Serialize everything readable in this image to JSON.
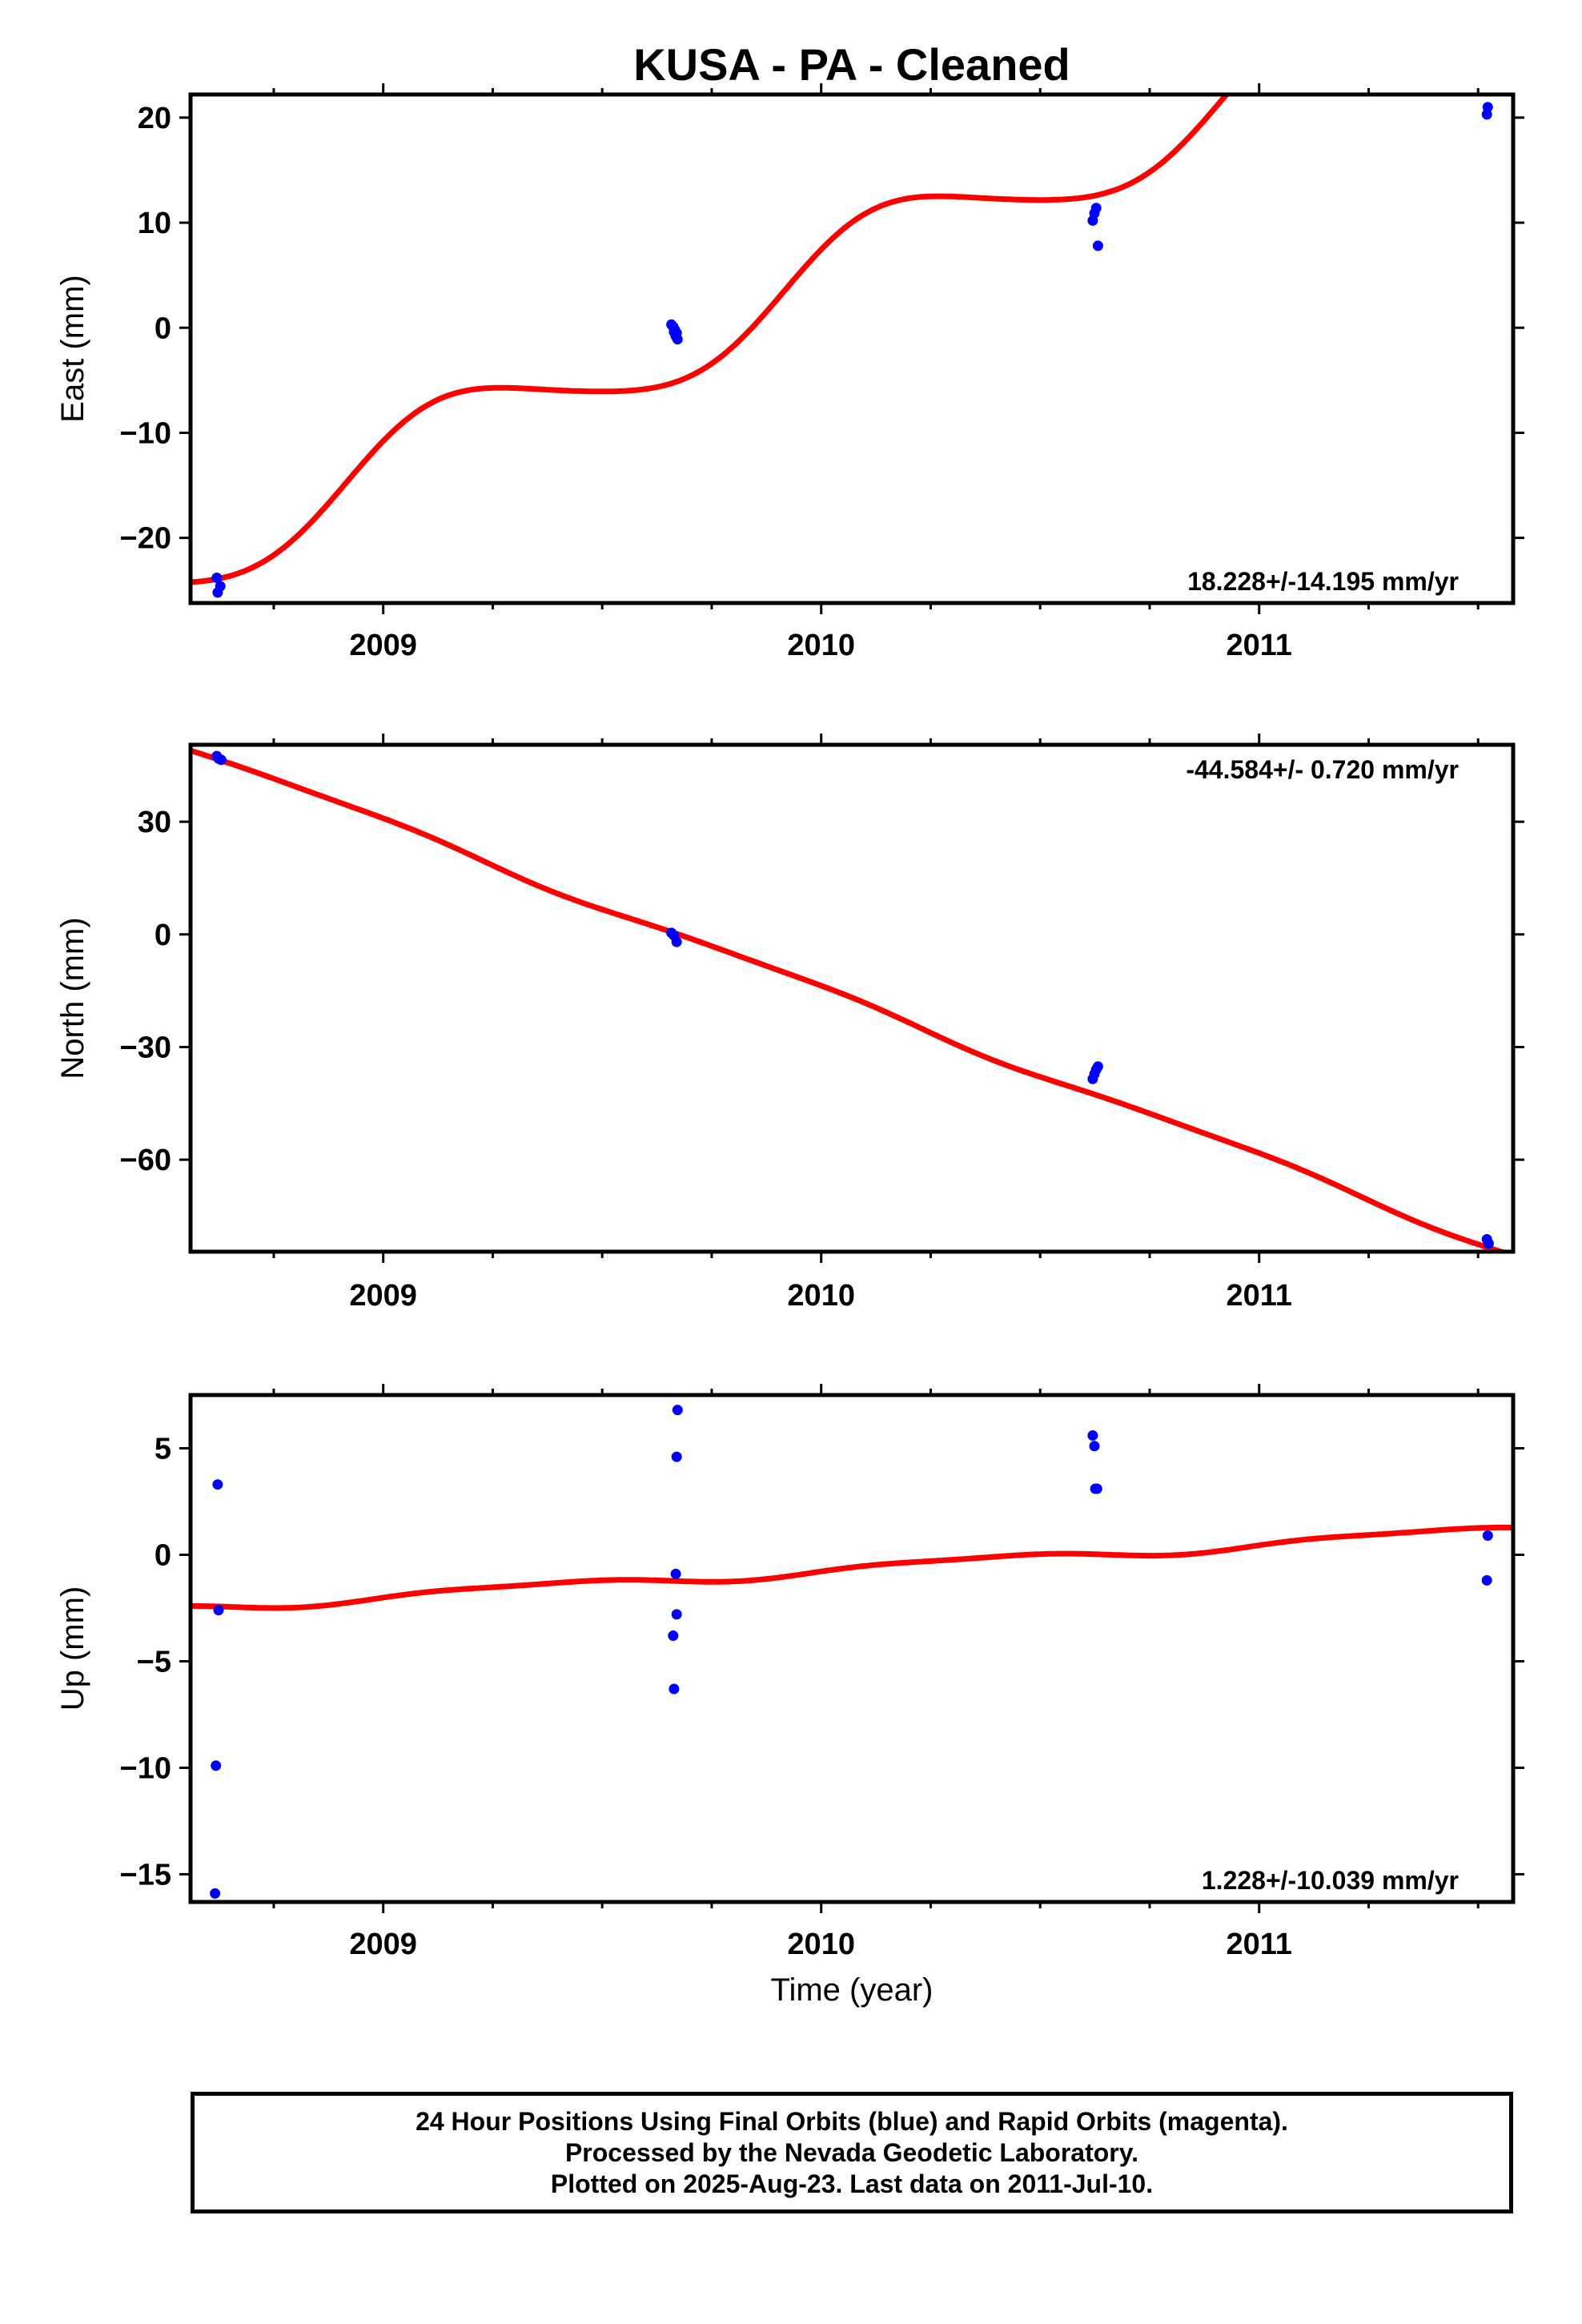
{
  "title": "KUSA  - PA - Cleaned",
  "xlabel": "Time (year)",
  "colors": {
    "final": "#0000ff",
    "rapid": "#ff00ff",
    "model": "#ff0000",
    "frame": "#000000"
  },
  "footer": {
    "line1": "24 Hour Positions Using Final Orbits (blue) and Rapid Orbits (magenta).",
    "line2": "Processed by the Nevada Geodetic Laboratory.",
    "line3": "Plotted on 2025-Aug-23. Last data on 2011-Jul-10."
  },
  "chart_data": [
    {
      "type": "scatter",
      "component": "east",
      "ylabel": "East (mm)",
      "rate": "18.228+/-14.195 mm/yr",
      "rate_position": "bottom-right",
      "xlim": [
        2008.56,
        2011.58
      ],
      "ylim": [
        -26.2,
        22.2
      ],
      "xticks": [
        2009,
        2010,
        2011
      ],
      "xtick_labels": [
        "2009",
        "2010",
        "2011"
      ],
      "yticks": [
        -20,
        -10,
        0,
        10,
        20
      ],
      "ytick_labels": [
        "−20",
        "−10",
        "0",
        "10",
        "20"
      ],
      "points": [
        [
          2008.62,
          -23.8
        ],
        [
          2008.622,
          -25.2
        ],
        [
          2008.628,
          -24.6
        ],
        [
          2009.658,
          0.3
        ],
        [
          2009.662,
          0.1
        ],
        [
          2009.666,
          -0.2
        ],
        [
          2009.67,
          -0.5
        ],
        [
          2009.672,
          -1.1
        ],
        [
          2009.668,
          -0.8
        ],
        [
          2009.664,
          -0.4
        ],
        [
          2010.62,
          10.2
        ],
        [
          2010.624,
          10.9
        ],
        [
          2010.628,
          11.4
        ],
        [
          2010.632,
          7.8
        ],
        [
          2011.52,
          20.3
        ],
        [
          2011.522,
          21.0
        ]
      ],
      "model": {
        "intercept_year": 2009.66,
        "intercept": -1.3,
        "slope": 18.228,
        "sin": 3.4,
        "cos": 2.2,
        "sin2": 0.25,
        "cos2": 0.35
      }
    },
    {
      "type": "scatter",
      "component": "north",
      "ylabel": "North (mm)",
      "rate": "-44.584+/- 0.720 mm/yr",
      "rate_position": "top-right",
      "xlim": [
        2008.56,
        2011.58
      ],
      "ylim": [
        -84.5,
        50.5
      ],
      "xticks": [
        2009,
        2010,
        2011
      ],
      "xtick_labels": [
        "2009",
        "2010",
        "2011"
      ],
      "yticks": [
        -60,
        -30,
        0,
        30
      ],
      "ytick_labels": [
        "−60",
        "−30",
        "0",
        "30"
      ],
      "points": [
        [
          2008.62,
          47.5
        ],
        [
          2008.624,
          46.8
        ],
        [
          2008.63,
          46.5
        ],
        [
          2009.658,
          0.4
        ],
        [
          2009.664,
          -0.3
        ],
        [
          2009.67,
          -2.0
        ],
        [
          2010.62,
          -38.5
        ],
        [
          2010.624,
          -37.2
        ],
        [
          2010.628,
          -36.0
        ],
        [
          2010.632,
          -35.2
        ],
        [
          2011.52,
          -81.2
        ],
        [
          2011.524,
          -82.3
        ]
      ],
      "model": {
        "intercept_year": 2009.66,
        "intercept": 0.5,
        "slope": -44.584,
        "sin": -0.4,
        "cos": 1.0,
        "sin2": 0.3,
        "cos2": 0.0
      }
    },
    {
      "type": "scatter",
      "component": "up",
      "ylabel": "Up (mm)",
      "rate": "1.228+/-10.039 mm/yr",
      "rate_position": "bottom-right",
      "xlim": [
        2008.56,
        2011.58
      ],
      "ylim": [
        -16.3,
        7.5
      ],
      "xticks": [
        2009,
        2010,
        2011
      ],
      "xtick_labels": [
        "2009",
        "2010",
        "2011"
      ],
      "yticks": [
        -15,
        -10,
        -5,
        0,
        5
      ],
      "ytick_labels": [
        "−15",
        "−10",
        "−5",
        "0",
        "5"
      ],
      "points": [
        [
          2008.622,
          3.3
        ],
        [
          2008.624,
          -2.6
        ],
        [
          2008.618,
          -9.9
        ],
        [
          2008.616,
          -15.9
        ],
        [
          2009.672,
          6.8
        ],
        [
          2009.67,
          4.6
        ],
        [
          2009.668,
          -0.9
        ],
        [
          2009.67,
          -2.8
        ],
        [
          2009.662,
          -3.8
        ],
        [
          2009.664,
          -6.3
        ],
        [
          2010.62,
          5.6
        ],
        [
          2010.624,
          5.1
        ],
        [
          2010.626,
          3.1
        ],
        [
          2010.63,
          3.1
        ],
        [
          2011.522,
          0.9
        ],
        [
          2011.52,
          -1.2
        ]
      ],
      "model": {
        "intercept_year": 2009.66,
        "intercept": -1.15,
        "slope": 1.228,
        "sin": 0.18,
        "cos": -0.1,
        "sin2": 0.05,
        "cos2": 0.05
      }
    }
  ]
}
